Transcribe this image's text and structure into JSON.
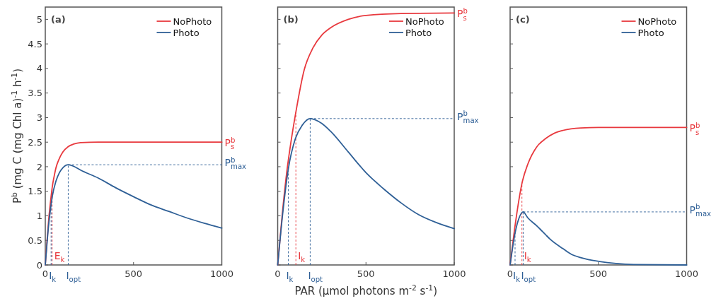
{
  "chart_data": [
    {
      "type": "line",
      "title": "(a)",
      "ylabel": "P$^{b}$ (mg C (mg Chl a)$^{-1}$ h$^{-1}$)",
      "xlim": [
        0,
        1000
      ],
      "ylim": [
        0,
        5.25
      ],
      "xticks": [
        0,
        500,
        1000
      ],
      "yticks": [
        0,
        0.5,
        1,
        1.5,
        2,
        2.5,
        3,
        3.5,
        4,
        4.5,
        5
      ],
      "legend": "top right",
      "series": [
        {
          "name": "NoPhoto",
          "color": "#e8393e",
          "x": [
            0,
            10,
            20,
            30,
            40,
            50,
            60,
            80,
            100,
            130,
            160,
            200,
            300,
            500,
            1000
          ],
          "values": [
            0,
            0.5,
            0.95,
            1.3,
            1.6,
            1.8,
            1.97,
            2.17,
            2.3,
            2.41,
            2.46,
            2.49,
            2.5,
            2.5,
            2.5
          ]
        },
        {
          "name": "Photo",
          "color": "#2e5f96",
          "x": [
            0,
            10,
            20,
            30,
            40,
            60,
            80,
            100,
            130,
            160,
            200,
            300,
            400,
            500,
            600,
            700,
            800,
            900,
            1000
          ],
          "values": [
            0,
            0.45,
            0.85,
            1.15,
            1.4,
            1.7,
            1.88,
            1.98,
            2.04,
            2.01,
            1.93,
            1.77,
            1.57,
            1.39,
            1.22,
            1.09,
            0.96,
            0.85,
            0.75
          ]
        }
      ],
      "ref_lines": [
        {
          "axis": "x",
          "value": 33,
          "label": "I$_{k}$",
          "color": "#2e5f96",
          "line_style": "dashed"
        },
        {
          "axis": "x",
          "value": 39,
          "label": "E$_{k}$",
          "color": "#e8393e",
          "line_style": "dashed"
        },
        {
          "axis": "x",
          "value": 130,
          "label": "I$_{opt}$",
          "color": "#2e5f96",
          "line_style": "dashed"
        },
        {
          "axis": "y",
          "value": 2.04,
          "label": "P$^{b}$$_{max}$",
          "color": "#2e5f96",
          "line_style": "dashed"
        }
      ],
      "annotations": [
        "P$^{b}$$_{s}$"
      ]
    },
    {
      "type": "line",
      "title": "(b)",
      "xlabel": "PAR (µmol photons m$^{-2}$ s$^{-1}$)",
      "xlim": [
        0,
        1000
      ],
      "ylim": [
        0,
        5.25
      ],
      "xticks": [
        0,
        500,
        1000
      ],
      "yticks": [
        0,
        0.5,
        1,
        1.5,
        2,
        2.5,
        3,
        3.5,
        4,
        4.5,
        5
      ],
      "tick_labels": "x",
      "legend": "top right",
      "series": [
        {
          "name": "NoPhoto",
          "color": "#e8393e",
          "x": [
            0,
            25,
            50,
            75,
            100,
            150,
            200,
            250,
            300,
            400,
            500,
            700,
            1000
          ],
          "values": [
            0,
            1.0,
            1.85,
            2.5,
            3.05,
            3.97,
            4.42,
            4.68,
            4.83,
            5.0,
            5.08,
            5.12,
            5.13
          ]
        },
        {
          "name": "Photo",
          "color": "#2e5f96",
          "x": [
            0,
            30,
            60,
            100,
            140,
            184,
            250,
            300,
            400,
            500,
            600,
            700,
            800,
            900,
            1000
          ],
          "values": [
            0,
            1.1,
            1.95,
            2.57,
            2.85,
            2.98,
            2.88,
            2.72,
            2.3,
            1.88,
            1.55,
            1.26,
            1.02,
            0.86,
            0.74
          ]
        }
      ],
      "ref_lines": [
        {
          "axis": "x",
          "value": 60,
          "label": "I$_{k}$",
          "color": "#2e5f96",
          "line_style": "dashed"
        },
        {
          "axis": "x",
          "value": 103,
          "label": "I$_{k}$",
          "color": "#e8393e",
          "line_style": "dashed"
        },
        {
          "axis": "x",
          "value": 184,
          "label": "I$_{opt}$",
          "color": "#2e5f96",
          "line_style": "dashed"
        },
        {
          "axis": "y",
          "value": 2.98,
          "label": "P$^{b}$$_{max}$",
          "color": "#2e5f96",
          "line_style": "dashed"
        }
      ],
      "annotations": [
        "P$^{b}$$_{s}$"
      ]
    },
    {
      "type": "line",
      "title": "(c)",
      "xlim": [
        0,
        1000
      ],
      "ylim": [
        0,
        5.25
      ],
      "xticks": [
        0,
        500,
        1000
      ],
      "yticks": [
        0,
        0.5,
        1,
        1.5,
        2,
        2.5,
        3,
        3.5,
        4,
        4.5,
        5
      ],
      "tick_labels": "x",
      "legend": "top right",
      "series": [
        {
          "name": "NoPhoto",
          "color": "#e8393e",
          "x": [
            0,
            30,
            67,
            100,
            150,
            200,
            250,
            300,
            400,
            500,
            1000
          ],
          "values": [
            0,
            0.85,
            1.66,
            2.05,
            2.4,
            2.57,
            2.68,
            2.74,
            2.79,
            2.8,
            2.8
          ]
        },
        {
          "name": "Photo",
          "color": "#2e5f96",
          "x": [
            0,
            28,
            50,
            74,
            100,
            150,
            200,
            225,
            300,
            346,
            400,
            507,
            600,
            700,
            1000
          ],
          "values": [
            0,
            0.65,
            0.95,
            1.08,
            0.96,
            0.8,
            0.62,
            0.53,
            0.33,
            0.22,
            0.15,
            0.07,
            0.03,
            0.01,
            0
          ]
        }
      ],
      "ref_lines": [
        {
          "axis": "x",
          "value": 28,
          "label": "I$_{k}$",
          "color": "#2e5f96",
          "line_style": "dashed"
        },
        {
          "axis": "x",
          "value": 67,
          "label": "I$_{k}$",
          "color": "#e8393e",
          "line_style": "dashed"
        },
        {
          "axis": "x",
          "value": 74,
          "label": "I$_{opt}$",
          "color": "#2e5f96",
          "line_style": "dashed"
        },
        {
          "axis": "y",
          "value": 1.08,
          "label": "P$^{b}$$_{max}$",
          "color": "#2e5f96",
          "line_style": "dashed"
        }
      ],
      "annotations": [
        "P$^{b}$$_{s}$"
      ]
    }
  ]
}
